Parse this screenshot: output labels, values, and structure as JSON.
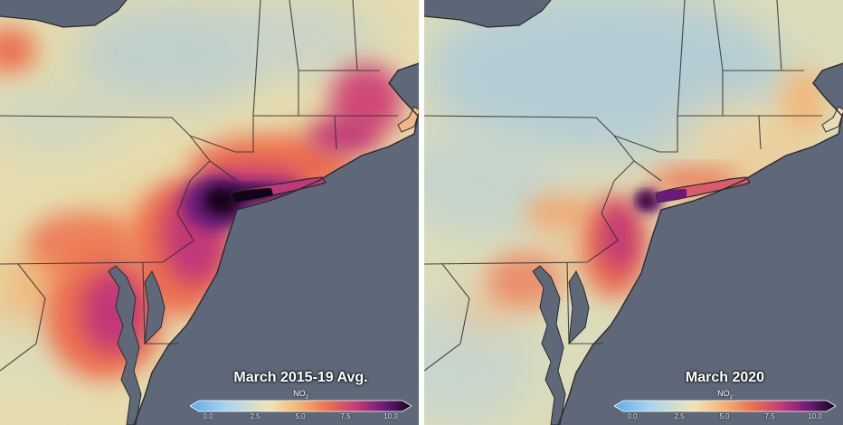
{
  "legend": {
    "variable": "NO",
    "variable_sub": "2",
    "ticks": [
      "0.0",
      "2.5",
      "5.0",
      "7.5",
      "10.0"
    ]
  },
  "panels": [
    {
      "title": "March 2015-19 Avg."
    },
    {
      "title": "March 2020"
    }
  ],
  "colors": {
    "ocean": "#5e6878",
    "land_low": "#e8dcaa",
    "land_cool": "#b6cfd6",
    "scale": [
      "#5fa8e8",
      "#a8d4f0",
      "#f0e4b0",
      "#f4b070",
      "#ec7050",
      "#c03878",
      "#6a1a7a",
      "#120418"
    ]
  }
}
